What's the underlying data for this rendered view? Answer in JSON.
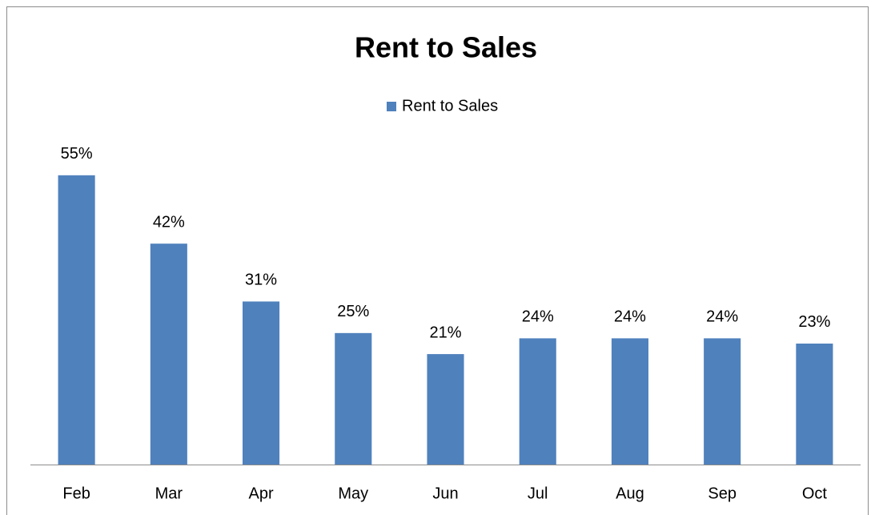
{
  "chart_data": {
    "type": "bar",
    "title": "Rent to Sales",
    "categories": [
      "Feb",
      "Mar",
      "Apr",
      "May",
      "Jun",
      "Jul",
      "Aug",
      "Sep",
      "Oct"
    ],
    "series": [
      {
        "name": "Rent to Sales",
        "color": "#4f81bd",
        "values": [
          55,
          42,
          31,
          25,
          21,
          24,
          24,
          24,
          23
        ],
        "value_labels": [
          "55%",
          "42%",
          "31%",
          "25%",
          "21%",
          "24%",
          "24%",
          "24%",
          "23%"
        ]
      }
    ],
    "ylim": [
      0,
      60
    ],
    "legend": "top"
  }
}
